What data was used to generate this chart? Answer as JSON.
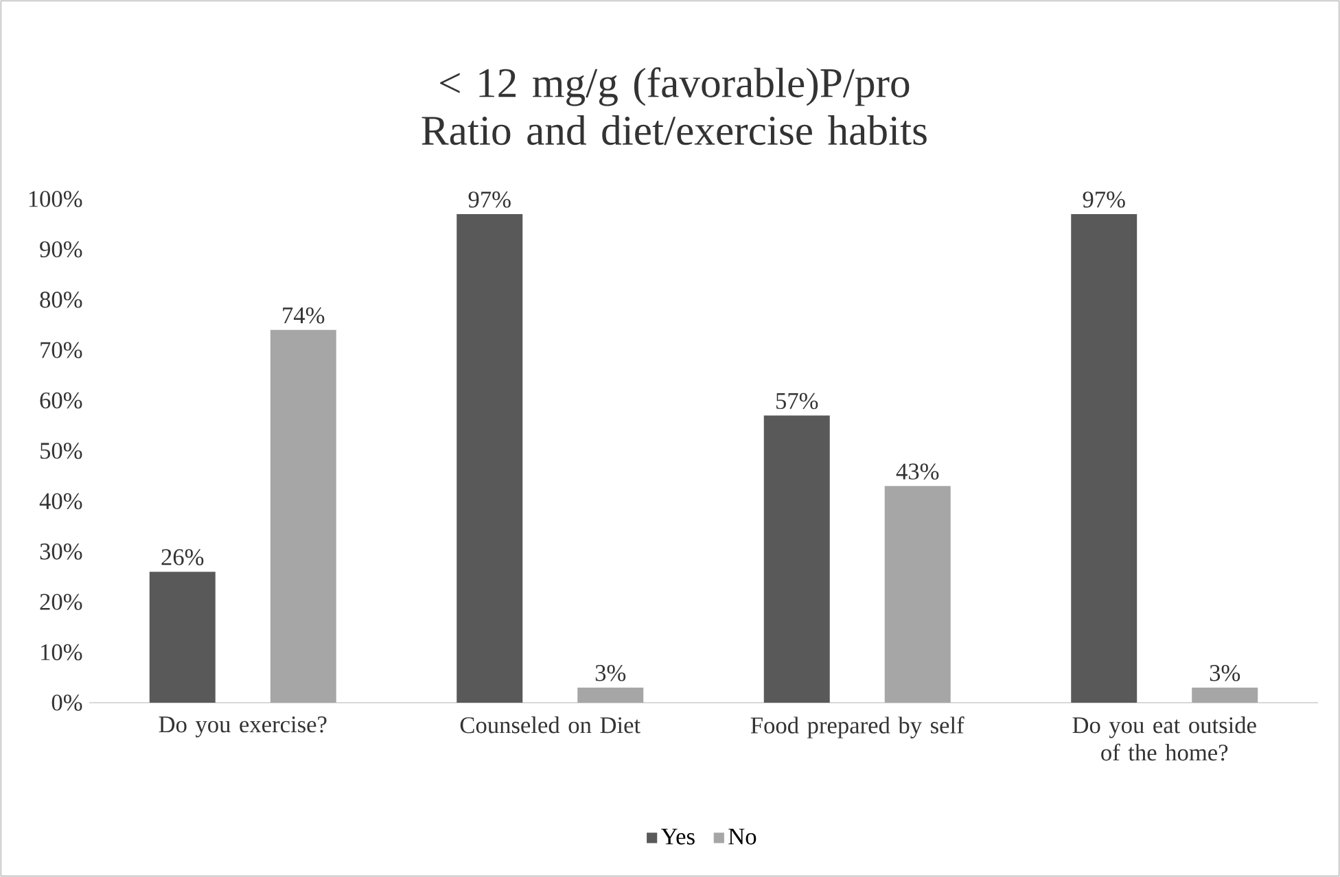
{
  "chart_data": {
    "type": "bar",
    "title": "< 12 mg/g (favorable)P/pro Ratio and diet/exercise habits",
    "categories": [
      "Do you exercise?",
      "Counseled on Diet",
      "Food prepared by self",
      "Do you eat outside of the home?"
    ],
    "series": [
      {
        "name": "Yes",
        "color": "#595959",
        "values": [
          26,
          97,
          57,
          97
        ],
        "value_labels": [
          "26%",
          "97%",
          "57%",
          "97%"
        ]
      },
      {
        "name": "No",
        "color": "#a6a6a6",
        "values": [
          74,
          3,
          43,
          3
        ],
        "value_labels": [
          "74%",
          "3%",
          "43%",
          "3%"
        ]
      }
    ],
    "ylim": [
      0,
      100
    ],
    "yticks": [
      {
        "value": 0,
        "label": "0%"
      },
      {
        "value": 10,
        "label": "10%"
      },
      {
        "value": 20,
        "label": "20%"
      },
      {
        "value": 30,
        "label": "30%"
      },
      {
        "value": 40,
        "label": "40%"
      },
      {
        "value": 50,
        "label": "50%"
      },
      {
        "value": 60,
        "label": "60%"
      },
      {
        "value": 70,
        "label": "70%"
      },
      {
        "value": 80,
        "label": "80%"
      },
      {
        "value": 90,
        "label": "90%"
      },
      {
        "value": 100,
        "label": "100%"
      }
    ],
    "legend": "bottom"
  }
}
